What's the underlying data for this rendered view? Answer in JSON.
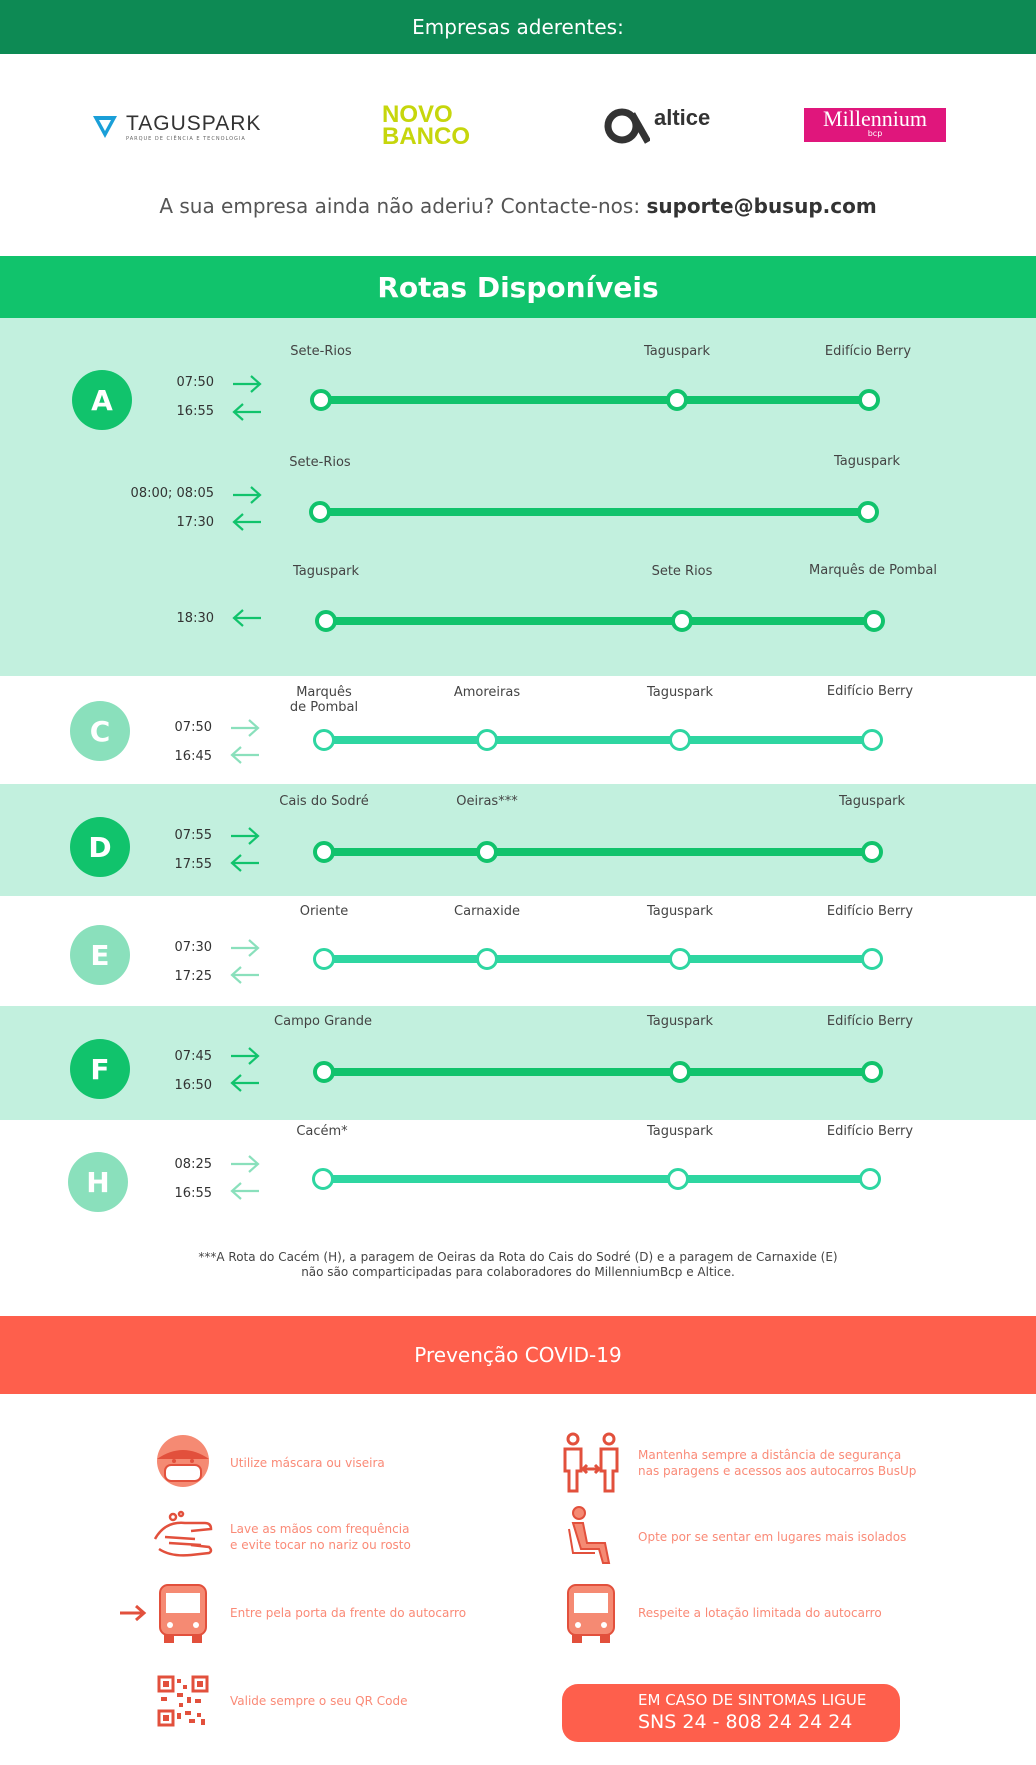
{
  "header": {
    "title": "Empresas aderentes:"
  },
  "logos": {
    "taguspark": {
      "name": "TAGUSPARK",
      "subtitle": "PARQUE DE CIÊNCIA E TECNOLOGIA"
    },
    "novobanco": {
      "line1": "NOVO",
      "line2": "BANCO"
    },
    "altice": {
      "name": "altice"
    },
    "millennium": {
      "name": "Millennium",
      "sub": "bcp"
    }
  },
  "contact": {
    "text": "A sua empresa ainda não aderiu? Contacte-nos: ",
    "email": "suporte@busup.com"
  },
  "routes_title": "Rotas Disponíveis",
  "routes": {
    "A": {
      "letter": "A",
      "trips": [
        {
          "out_time": "07:50",
          "back_time": "16:55",
          "stops": [
            "Sete-Rios",
            "Taguspark",
            "Edifício Berry"
          ]
        },
        {
          "out_time": "08:00; 08:05",
          "back_time": "17:30",
          "stops": [
            "Sete-Rios",
            "Taguspark"
          ]
        },
        {
          "back_time": "18:30",
          "stops": [
            "Taguspark",
            "Sete Rios",
            "Marquês de Pombal"
          ]
        }
      ]
    },
    "C": {
      "letter": "C",
      "out_time": "07:50",
      "back_time": "16:45",
      "stops": [
        "Marquês de Pombal",
        "Amoreiras",
        "Taguspark",
        "Edifício Berry"
      ]
    },
    "D": {
      "letter": "D",
      "out_time": "07:55",
      "back_time": "17:55",
      "stops": [
        "Cais do Sodré",
        "Oeiras***",
        "Taguspark"
      ]
    },
    "E": {
      "letter": "E",
      "out_time": "07:30",
      "back_time": "17:25",
      "stops": [
        "Oriente",
        "Carnaxide",
        "Taguspark",
        "Edifício Berry"
      ]
    },
    "F": {
      "letter": "F",
      "out_time": "07:45",
      "back_time": "16:50",
      "stops": [
        "Campo Grande",
        "Taguspark",
        "Edifício Berry"
      ]
    },
    "H": {
      "letter": "H",
      "out_time": "08:25",
      "back_time": "16:55",
      "stops": [
        "Cacém*",
        "Taguspark",
        "Edifício Berry"
      ]
    }
  },
  "footnote": {
    "line1": "***A Rota do Cacém (H), a paragem de Oeiras da Rota do Cais do Sodré (D) e a paragem de Carnaxide (E)",
    "line2": "não são comparticipadas para colaboradores do MillenniumBcp e Altice."
  },
  "covid": {
    "title": "Prevenção COVID-19",
    "tips": {
      "mask": {
        "line1": "Utilize máscara ou viseira",
        "icon": "face-mask-icon"
      },
      "distance": {
        "line1": "Mantenha sempre a distância de segurança",
        "line2": "nas paragens e acessos aos autocarros BusUp",
        "icon": "distance-icon"
      },
      "wash": {
        "line1": "Lave as mãos com frequência",
        "line2": "e evite tocar no nariz ou rosto",
        "icon": "hand-wash-icon"
      },
      "seat": {
        "line1": "Opte por se sentar em lugares mais isolados",
        "icon": "seated-person-icon"
      },
      "front_door": {
        "line1": "Entre pela porta da frente do autocarro",
        "icon": "bus-enter-icon"
      },
      "capacity": {
        "line1": "Respeite a lotação limitada do autocarro",
        "icon": "bus-icon"
      },
      "qr": {
        "line1": "Valide sempre o seu QR Code",
        "icon": "qr-code-icon"
      }
    },
    "sos": {
      "line1": "EM CASO DE SINTOMAS LIGUE",
      "line2": "SNS 24  - 808 24 24 24"
    }
  },
  "colors": {
    "green_dark": "#0d8a54",
    "green": "#11c36c",
    "green_light_bg": "#c2f0de",
    "teal": "#2ed6a1",
    "coral": "#fe5f4c"
  }
}
